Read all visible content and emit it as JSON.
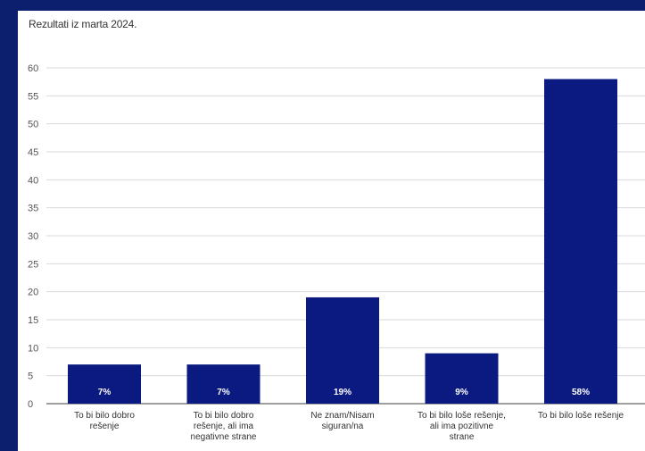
{
  "subtitle": "Rezultati iz marta 2024.",
  "colors": {
    "background": "#0b1f6e",
    "bar": "#0a1a80",
    "panel": "#ffffff"
  },
  "chart_data": {
    "type": "bar",
    "categories": [
      "To bi bilo dobro rešenje",
      "To bi bilo dobro rešenje, ali ima negativne strane",
      "Ne znam/Nisam siguran/na",
      "To bi bilo loše rešenje, ali ima pozitivne strane",
      "To bi bilo loše rešenje"
    ],
    "values": [
      7,
      7,
      19,
      9,
      58
    ],
    "data_labels": [
      "7%",
      "7%",
      "19%",
      "9%",
      "58%"
    ],
    "yticks": [
      0,
      5,
      10,
      15,
      20,
      25,
      30,
      35,
      40,
      45,
      50,
      55,
      60
    ],
    "ylim": [
      0,
      60
    ],
    "grid": true,
    "xlabel": "",
    "ylabel": ""
  }
}
